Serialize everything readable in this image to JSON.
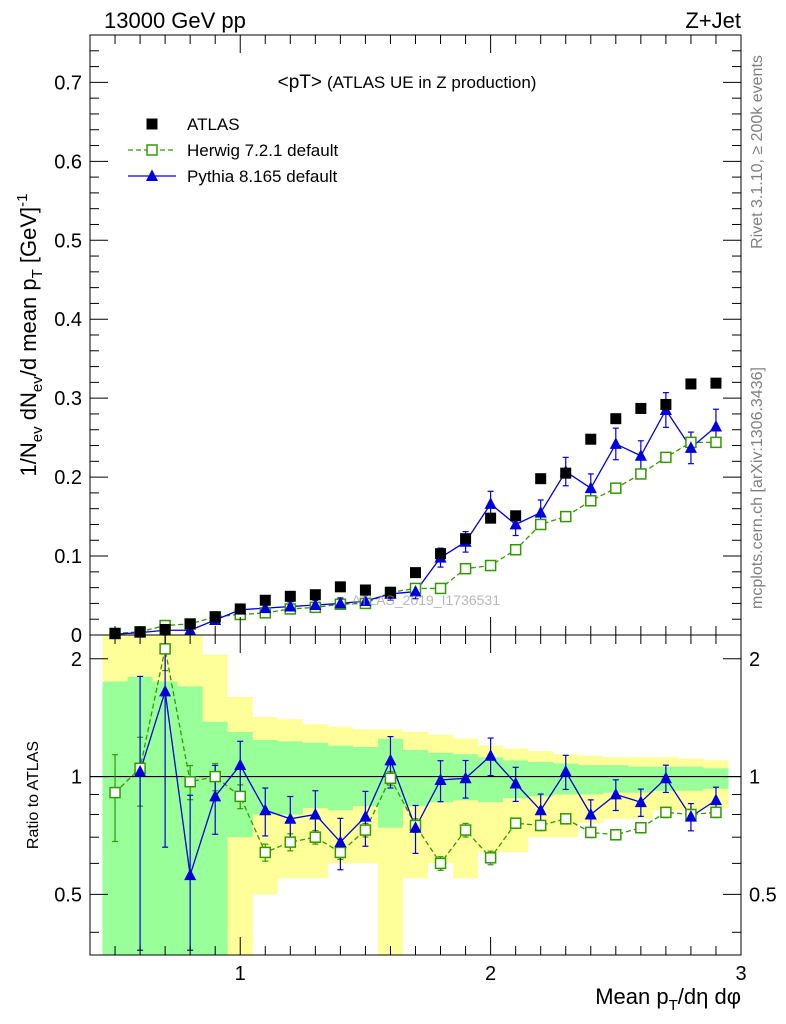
{
  "header": {
    "energy_label": "13000 GeV pp",
    "process_label": "Z+Jet",
    "plot_title_main": "<pT>",
    "plot_title_sub": "(ATLAS UE in Z production)",
    "watermark": "ATLAS_2019_I1736531"
  },
  "side_labels": {
    "rivet": "Rivet 3.1.10, ≥ 200k events",
    "mcplots": "mcplots.cern.ch [arXiv:1306.3436]"
  },
  "colors": {
    "atlas": "#000000",
    "herwig": "#339900",
    "pythia": "#0000dd",
    "band_inner": "#99ff99",
    "band_outer": "#ffff99"
  },
  "chart_data": [
    {
      "type": "scatter",
      "panel": "main",
      "xlabel": "Mean p_T/dη dφ",
      "ylabel": "1/N_ev dN_ev/d mean p_T [GeV]^-1",
      "xlim": [
        0.4,
        3.0
      ],
      "ylim": [
        0,
        0.76
      ],
      "x_ticks": [
        "1",
        "2",
        "3"
      ],
      "y_ticks": [
        "0",
        "0.1",
        "0.2",
        "0.3",
        "0.4",
        "0.5",
        "0.6",
        "0.7"
      ],
      "legend_position": "top-left",
      "series": [
        {
          "name": "ATLAS",
          "style": "filled-square",
          "x": [
            0.5,
            0.6,
            0.7,
            0.8,
            0.9,
            1.0,
            1.1,
            1.2,
            1.3,
            1.4,
            1.5,
            1.6,
            1.7,
            1.8,
            1.9,
            2.0,
            2.1,
            2.2,
            2.3,
            2.4,
            2.5,
            2.6,
            2.7,
            2.8,
            2.9
          ],
          "values": [
            0.002,
            0.004,
            0.007,
            0.014,
            0.023,
            0.033,
            0.044,
            0.049,
            0.051,
            0.061,
            0.057,
            0.054,
            0.079,
            0.103,
            0.122,
            0.148,
            0.151,
            0.198,
            0.205,
            0.248,
            0.274,
            0.287,
            0.292,
            0.318,
            0.319
          ]
        },
        {
          "name": "Herwig 7.2.1 default",
          "style": "open-square-dashed",
          "x": [
            0.5,
            0.6,
            0.7,
            0.8,
            0.9,
            1.0,
            1.1,
            1.2,
            1.3,
            1.4,
            1.5,
            1.6,
            1.7,
            1.8,
            1.9,
            2.0,
            2.1,
            2.2,
            2.3,
            2.4,
            2.5,
            2.6,
            2.7,
            2.8,
            2.9
          ],
          "values": [
            0.002,
            0.004,
            0.012,
            0.014,
            0.023,
            0.026,
            0.028,
            0.033,
            0.035,
            0.039,
            0.04,
            0.054,
            0.059,
            0.059,
            0.084,
            0.088,
            0.108,
            0.14,
            0.15,
            0.17,
            0.186,
            0.204,
            0.225,
            0.244,
            0.244
          ]
        },
        {
          "name": "Pythia 8.165 default",
          "style": "filled-triangle-solid",
          "x": [
            0.5,
            0.6,
            0.7,
            0.8,
            0.9,
            1.0,
            1.1,
            1.2,
            1.3,
            1.4,
            1.5,
            1.6,
            1.7,
            1.8,
            1.9,
            2.0,
            2.1,
            2.2,
            2.3,
            2.4,
            2.5,
            2.6,
            2.7,
            2.8,
            2.9
          ],
          "values": [
            0.001,
            0.003,
            0.006,
            0.006,
            0.019,
            0.032,
            0.034,
            0.036,
            0.038,
            0.04,
            0.043,
            0.052,
            0.055,
            0.098,
            0.118,
            0.166,
            0.14,
            0.155,
            0.207,
            0.186,
            0.242,
            0.227,
            0.285,
            0.237,
            0.264
          ]
        }
      ]
    },
    {
      "type": "scatter",
      "panel": "ratio",
      "ylabel": "Ratio to ATLAS",
      "xlim": [
        0.4,
        3.0
      ],
      "ylim": [
        0.35,
        2.3
      ],
      "y_ticks": [
        "0.5",
        "1",
        "2"
      ],
      "y_scale": "log",
      "series": [
        {
          "name": "Herwig 7.2.1 default",
          "x": [
            0.5,
            0.6,
            0.7,
            0.8,
            0.9,
            1.0,
            1.1,
            1.2,
            1.3,
            1.4,
            1.5,
            1.6,
            1.7,
            1.8,
            1.9,
            2.0,
            2.1,
            2.2,
            2.3,
            2.4,
            2.5,
            2.6,
            2.7,
            2.8,
            2.9
          ],
          "values": [
            0.91,
            1.05,
            2.12,
            0.97,
            1.0,
            0.89,
            0.64,
            0.68,
            0.7,
            0.64,
            0.73,
            0.99,
            0.75,
            0.6,
            0.73,
            0.62,
            0.76,
            0.75,
            0.78,
            0.72,
            0.71,
            0.74,
            0.81,
            0.8,
            0.81
          ]
        },
        {
          "name": "Pythia 8.165 default",
          "x": [
            0.5,
            0.6,
            0.7,
            0.8,
            0.9,
            1.0,
            1.1,
            1.2,
            1.3,
            1.4,
            1.5,
            1.6,
            1.7,
            1.8,
            1.9,
            2.0,
            2.1,
            2.2,
            2.3,
            2.4,
            2.5,
            2.6,
            2.7,
            2.8,
            2.9
          ],
          "values": [
            0.5,
            1.03,
            1.65,
            0.56,
            0.89,
            1.07,
            0.82,
            0.78,
            0.8,
            0.68,
            0.79,
            1.1,
            0.74,
            0.98,
            0.99,
            1.13,
            0.96,
            0.82,
            1.03,
            0.8,
            0.9,
            0.86,
            0.99,
            0.79,
            0.87
          ]
        }
      ]
    }
  ]
}
